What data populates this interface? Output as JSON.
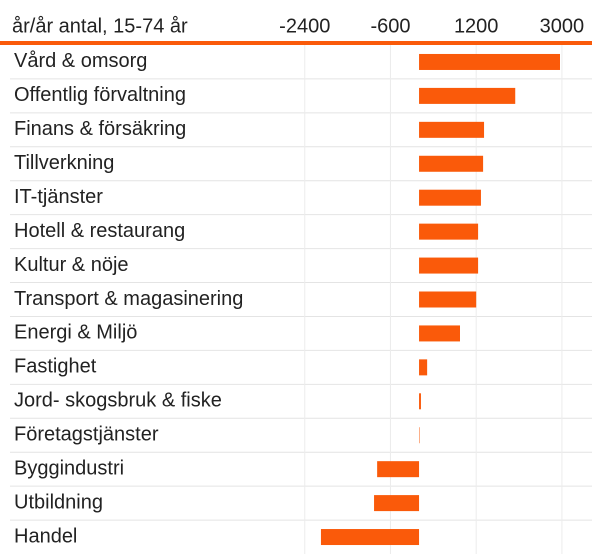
{
  "chart_data": {
    "type": "barh",
    "subtitle": "år/år antal, 15-74 år",
    "categories": [
      "Vård & omsorg",
      "Offentlig förvaltning",
      "Finans & försäkring",
      "Tillverkning",
      "IT-tjänster",
      "Hotell & restaurang",
      "Kultur & nöje",
      "Transport & magasinering",
      "Energi & Miljö",
      "Fastighet",
      "Jord- skogsbruk & fiske",
      "Företagstjänster",
      "Byggindustri",
      "Utbildning",
      "Handel"
    ],
    "values": [
      2960,
      2020,
      1365,
      1345,
      1300,
      1240,
      1240,
      1200,
      860,
      170,
      40,
      10,
      -880,
      -945,
      -2060
    ],
    "color": "#fa5a0a",
    "xlim": [
      -2500,
      3380
    ],
    "xticks": [
      -2400,
      -600,
      1200,
      3000
    ],
    "grid": true
  }
}
